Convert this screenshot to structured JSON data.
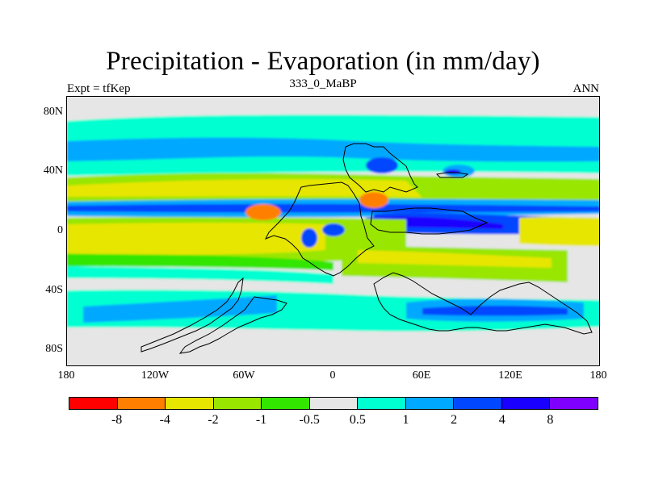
{
  "title": "Precipitation - Evaporation (in mm/day)",
  "subtitle": "333_0_MaBP",
  "left_label": "Expt = tfKep",
  "right_label": "ANN",
  "y_ticks": [
    "80N",
    "40N",
    "0",
    "40S",
    "80S"
  ],
  "x_ticks": [
    "180",
    "120W",
    "60W",
    "0",
    "60E",
    "120E",
    "180"
  ],
  "colorbar": {
    "colors": [
      "#ff0000",
      "#ff8000",
      "#e6e600",
      "#99e600",
      "#33e600",
      "#e6e6e6",
      "#00ffd1",
      "#00a9ff",
      "#0047ff",
      "#1a00ff",
      "#8000ff"
    ],
    "labels": [
      "-8",
      "-4",
      "-2",
      "-1",
      "-0.5",
      "0.5",
      "1",
      "2",
      "4",
      "8"
    ]
  }
}
